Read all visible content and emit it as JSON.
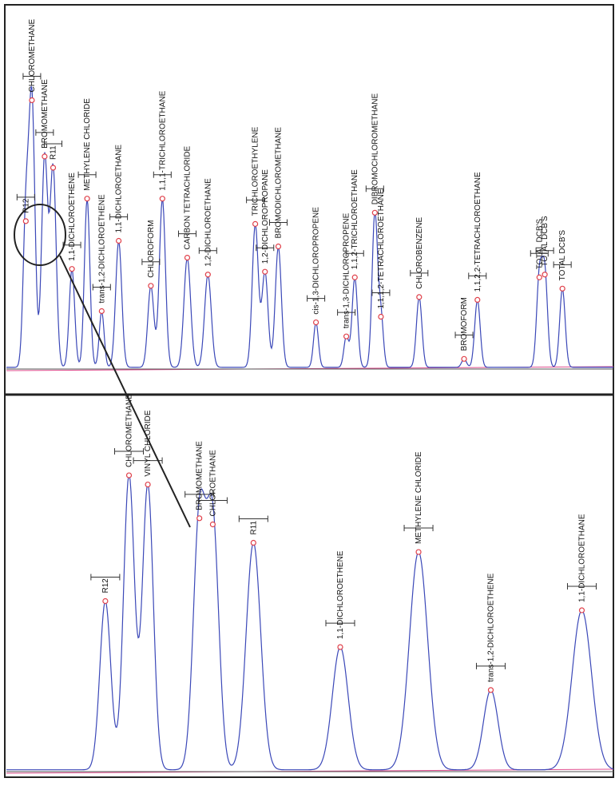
{
  "colors": {
    "trace": "#3b48b8",
    "marker": "#e0404a",
    "baseline": "#e04f8f",
    "frame": "#222222",
    "window": "#333333"
  },
  "chart_data": [
    {
      "type": "line",
      "panel": "top",
      "title": "",
      "xlabel": "",
      "ylabel": "",
      "xlim": [
        0,
        100
      ],
      "ylim": [
        0,
        100
      ],
      "grid": false,
      "peaks": [
        {
          "label": "R12",
          "x": 3.2,
          "height": 52,
          "width": 0.45
        },
        {
          "label": "CHLOROMETHANE",
          "x": 4.2,
          "height": 95,
          "width": 0.5
        },
        {
          "label": "BROMOMETHANE",
          "x": 6.3,
          "height": 75,
          "width": 0.5
        },
        {
          "label": "R11",
          "x": 7.7,
          "height": 71,
          "width": 0.5
        },
        {
          "label": "1,1-DICHLOROETHENE",
          "x": 10.8,
          "height": 35,
          "width": 0.45
        },
        {
          "label": "METHYLENE CHLORIDE",
          "x": 13.3,
          "height": 60,
          "width": 0.45
        },
        {
          "label": "trans-1,2-DICHLOROETHENE",
          "x": 15.7,
          "height": 20,
          "width": 0.4
        },
        {
          "label": "1,1-DICHLOROETHANE",
          "x": 18.5,
          "height": 45,
          "width": 0.5
        },
        {
          "label": "CHLOROFORM",
          "x": 23.8,
          "height": 29,
          "width": 0.5
        },
        {
          "label": "1,1,1-TRICHLOROETHANE",
          "x": 25.7,
          "height": 60,
          "width": 0.5
        },
        {
          "label": "CARBON TETRACHLORIDE",
          "x": 29.8,
          "height": 39,
          "width": 0.55
        },
        {
          "label": "1,2-DICHLOROETHANE",
          "x": 33.2,
          "height": 33,
          "width": 0.55
        },
        {
          "label": "TRICHLOROETHYLENE",
          "x": 41.0,
          "height": 51,
          "width": 0.5
        },
        {
          "label": "1,2-DICHLOROPROPANE",
          "x": 42.6,
          "height": 34,
          "width": 0.5
        },
        {
          "label": "BROMODICHLOROMETHANE",
          "x": 44.8,
          "height": 43,
          "width": 0.5
        },
        {
          "label": "cis-1,3-DICHLOROPROPENE",
          "x": 51.0,
          "height": 16,
          "width": 0.4
        },
        {
          "label": "trans-1,3-DICHLOROPROPENE",
          "x": 56.0,
          "height": 11,
          "width": 0.4
        },
        {
          "label": "1,1,2-TRICHLOROETHANE",
          "x": 57.4,
          "height": 32,
          "width": 0.45
        },
        {
          "label": "DIBROMOCHLOROMETHANE",
          "x": 60.7,
          "height": 55,
          "width": 0.45
        },
        {
          "label": "1,1,1,2-TETRACHLOROETHANE",
          "x": 61.7,
          "height": 18,
          "width": 0.4
        },
        {
          "label": "CHLOROBENZENE",
          "x": 68.0,
          "height": 25,
          "width": 0.45
        },
        {
          "label": "BROMOFORM",
          "x": 75.4,
          "height": 3,
          "width": 0.4
        },
        {
          "label": "1,1,2,2-TETRACHLOROETHANE",
          "x": 77.6,
          "height": 24,
          "width": 0.45
        },
        {
          "label": "TOTAL DCB'S",
          "x": 87.8,
          "height": 32,
          "width": 0.45
        },
        {
          "label": "TOTAL DCB'S",
          "x": 88.7,
          "height": 33,
          "width": 0.45
        },
        {
          "label": "TOTAL DCB'S",
          "x": 91.6,
          "height": 28,
          "width": 0.45
        }
      ]
    },
    {
      "type": "line",
      "panel": "bottom",
      "title": "",
      "xlabel": "",
      "ylabel": "",
      "xlim": [
        0,
        100
      ],
      "ylim": [
        0,
        100
      ],
      "grid": false,
      "peaks": [
        {
          "label": "R12",
          "x": 16.3,
          "height": 55,
          "width": 0.9
        },
        {
          "label": "CHLOROMETHANE",
          "x": 20.2,
          "height": 96,
          "width": 0.9
        },
        {
          "label": "VINYL CHLORIDE",
          "x": 23.3,
          "height": 93,
          "width": 0.9
        },
        {
          "label": "BROMOMETHANE",
          "x": 31.8,
          "height": 82,
          "width": 1.0
        },
        {
          "label": "CHLOROETHANE",
          "x": 34.0,
          "height": 80,
          "width": 1.0
        },
        {
          "label": "R11",
          "x": 40.7,
          "height": 74,
          "width": 1.2
        },
        {
          "label": "1,1-DICHLOROETHENE",
          "x": 55.0,
          "height": 40,
          "width": 1.3
        },
        {
          "label": "METHYLENE CHLORIDE",
          "x": 67.9,
          "height": 71,
          "width": 1.5
        },
        {
          "label": "trans-1,2-DICHLOROETHENE",
          "x": 79.8,
          "height": 26,
          "width": 1.2
        },
        {
          "label": "1,1-DICHLOROETHANE",
          "x": 94.8,
          "height": 52,
          "width": 1.6
        }
      ]
    }
  ]
}
